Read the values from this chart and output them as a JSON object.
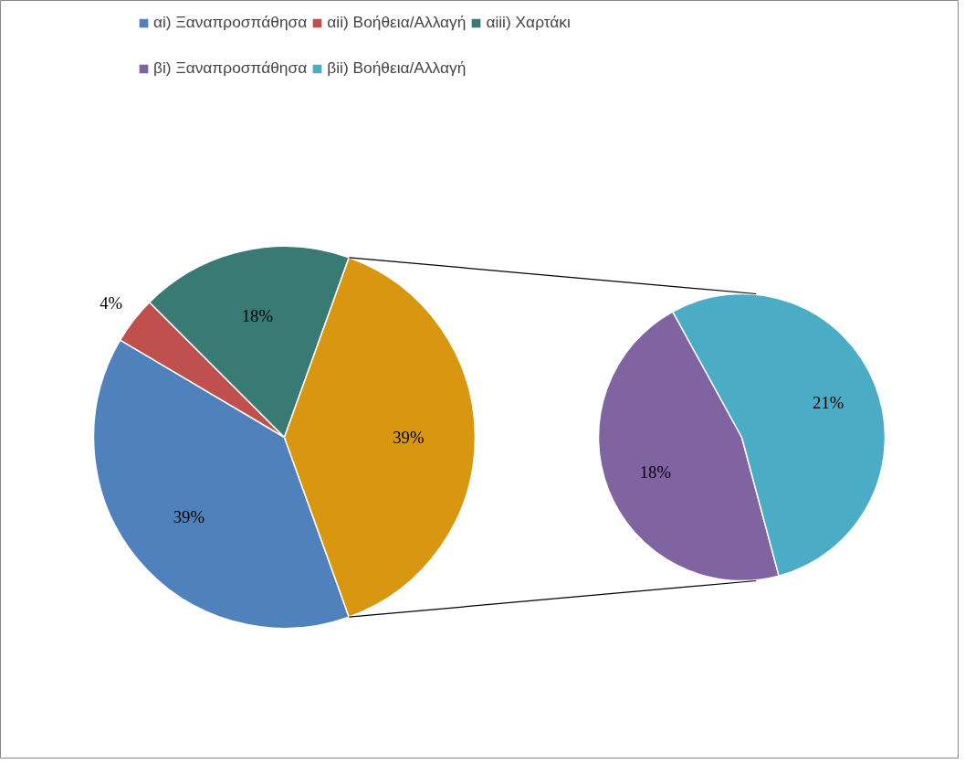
{
  "chart_data": [
    {
      "type": "pie",
      "categories": [
        "αi) Ξαναπροσπάθησα",
        "αii) Βοήθεια/Αλλαγή",
        "αiii) Χαρτάκι",
        null
      ],
      "values": [
        39,
        4,
        18,
        39
      ],
      "value_labels": [
        "39%",
        "4%",
        "18%",
        "39%"
      ],
      "colors": [
        "#4f81bd",
        "#c0504d",
        "#3a7a74",
        "#d99711"
      ],
      "legend": "top"
    },
    {
      "type": "pie",
      "categories": [
        "βi) Ξαναπροσπάθησα",
        "βii) Βοήθεια/Αλλαγή"
      ],
      "values": [
        18,
        21
      ],
      "value_labels": [
        "18%",
        "21%"
      ],
      "colors": [
        "#8064a2",
        "#4bacc6"
      ],
      "legend": "top"
    }
  ]
}
